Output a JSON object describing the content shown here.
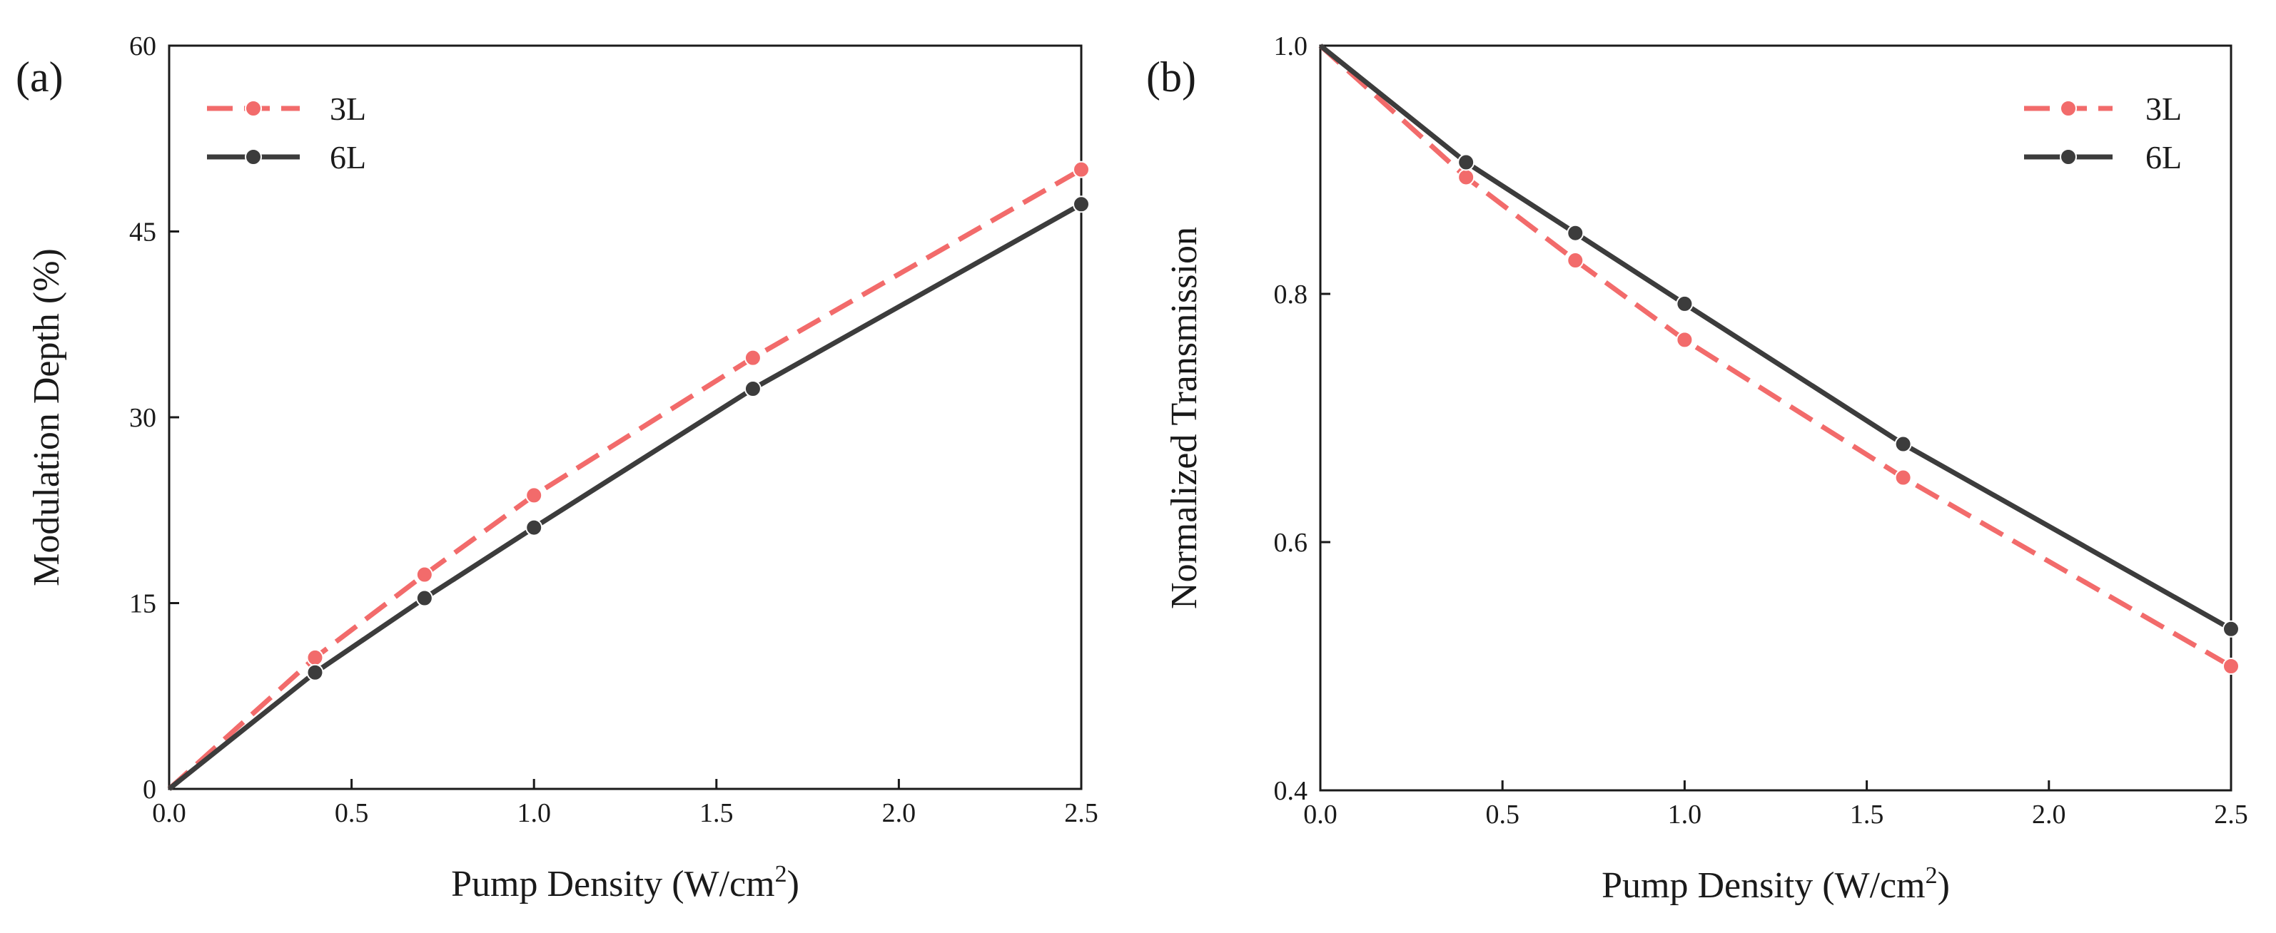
{
  "chart_data": [
    {
      "type": "line",
      "panel_label": "(a)",
      "xlabel": "Pump Density (W/cm",
      "xlabel_sup": "2",
      "xlabel_end": ")",
      "ylabel": "Modulation Depth (%)",
      "xlim": [
        0,
        2.5
      ],
      "ylim": [
        0,
        60
      ],
      "xticks": [
        0.0,
        0.5,
        1.0,
        1.5,
        2.0,
        2.5
      ],
      "xtick_labels": [
        "0.0",
        "0.5",
        "1.0",
        "1.5",
        "2.0",
        "2.5"
      ],
      "yticks": [
        0,
        15,
        30,
        45,
        60
      ],
      "ytick_labels": [
        "0",
        "15",
        "30",
        "45",
        "60"
      ],
      "legend_position": "top-left",
      "series": [
        {
          "name": "3L",
          "style": "dashed",
          "color": "#f26b6b",
          "x": [
            0,
            0.4,
            0.7,
            1.0,
            1.6,
            2.5
          ],
          "y": [
            0,
            10.6,
            17.3,
            23.7,
            34.8,
            50.0
          ]
        },
        {
          "name": "6L",
          "style": "solid",
          "color": "#3c3c3c",
          "x": [
            0,
            0.4,
            0.7,
            1.0,
            1.6,
            2.5
          ],
          "y": [
            0,
            9.4,
            15.4,
            21.1,
            32.3,
            47.2
          ]
        }
      ]
    },
    {
      "type": "line",
      "panel_label": "(b)",
      "xlabel": "Pump Density (W/cm",
      "xlabel_sup": "2",
      "xlabel_end": ")",
      "ylabel": "Normalized Transmission",
      "xlim": [
        0,
        2.5
      ],
      "ylim": [
        0.4,
        1.0
      ],
      "xticks": [
        0.0,
        0.5,
        1.0,
        1.5,
        2.0,
        2.5
      ],
      "xtick_labels": [
        "0.0",
        "0.5",
        "1.0",
        "1.5",
        "2.0",
        "2.5"
      ],
      "yticks": [
        0.4,
        0.6,
        0.8,
        1.0
      ],
      "ytick_labels": [
        "0.4",
        "0.6",
        "0.8",
        "1.0"
      ],
      "legend_position": "top-right",
      "series": [
        {
          "name": "3L",
          "style": "dashed",
          "color": "#f26b6b",
          "x": [
            0,
            0.4,
            0.7,
            1.0,
            1.6,
            2.5
          ],
          "y": [
            1.0,
            0.894,
            0.827,
            0.763,
            0.652,
            0.5
          ]
        },
        {
          "name": "6L",
          "style": "solid",
          "color": "#3c3c3c",
          "x": [
            0,
            0.4,
            0.7,
            1.0,
            1.6,
            2.5
          ],
          "y": [
            1.0,
            0.906,
            0.849,
            0.792,
            0.679,
            0.53
          ]
        }
      ]
    }
  ]
}
